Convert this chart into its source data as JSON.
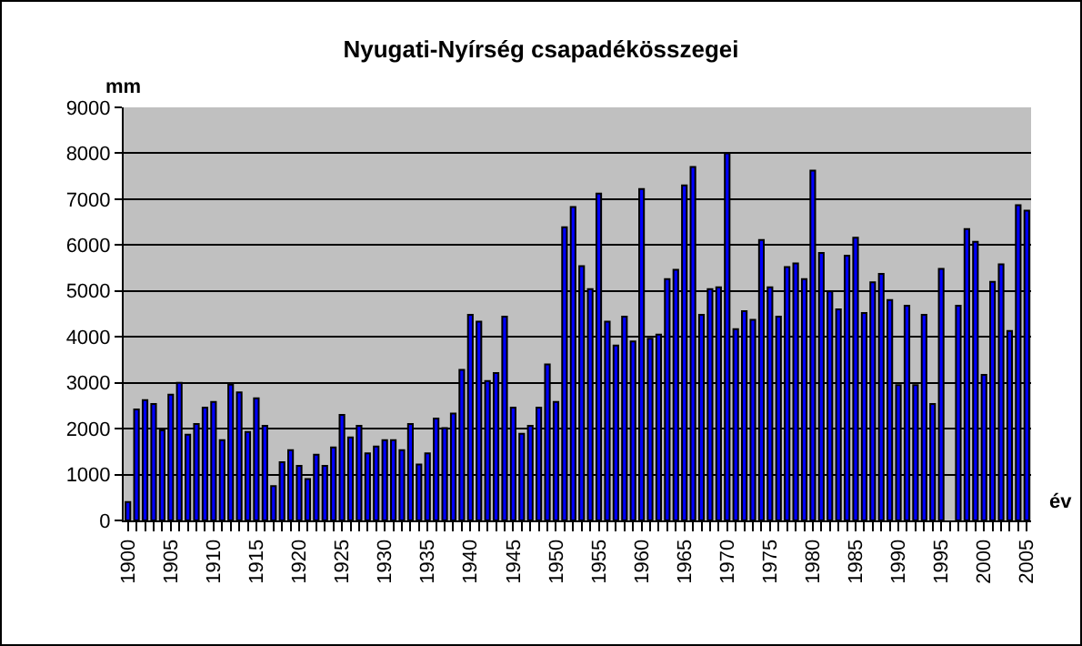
{
  "chart_data": {
    "type": "bar",
    "title": "Nyugati-Nyírség csapadékösszegei",
    "xlabel": "év",
    "ylabel": "mm",
    "categories": [
      "1900",
      null,
      null,
      null,
      null,
      "1905",
      null,
      null,
      null,
      null,
      "1910",
      null,
      null,
      null,
      null,
      "1915",
      null,
      null,
      null,
      null,
      "1920",
      null,
      null,
      null,
      null,
      "1925",
      null,
      null,
      null,
      null,
      "1930",
      null,
      null,
      null,
      null,
      "1935",
      null,
      null,
      null,
      null,
      "1940",
      null,
      null,
      null,
      null,
      "1945",
      null,
      null,
      null,
      null,
      "1950",
      null,
      null,
      null,
      null,
      "1955",
      null,
      null,
      null,
      null,
      "1960",
      null,
      null,
      null,
      null,
      "1965",
      null,
      null,
      null,
      null,
      "1970",
      null,
      null,
      null,
      null,
      "1975",
      null,
      null,
      null,
      null,
      "1980",
      null,
      null,
      null,
      null,
      "1985",
      null,
      null,
      null,
      null,
      "1990",
      null,
      null,
      null,
      null,
      "1995",
      null,
      null,
      null,
      null,
      "2000",
      null,
      null,
      null,
      null,
      "2005"
    ],
    "series": [
      {
        "color": "#0000ff",
        "values": [
          400,
          2420,
          2620,
          2540,
          1960,
          2740,
          3000,
          1870,
          2100,
          2460,
          2580,
          1750,
          2960,
          2790,
          1930,
          2660,
          2060,
          750,
          1270,
          1530,
          1190,
          900,
          1430,
          1190,
          1590,
          2300,
          1810,
          2060,
          1460,
          1610,
          1750,
          1750,
          1530,
          2100,
          1220,
          1460,
          2220,
          2010,
          2330,
          3280,
          4480,
          4330,
          3040,
          3210,
          4440,
          2460,
          1890,
          2060,
          2460,
          3400,
          2580,
          6390,
          6830,
          5540,
          5040,
          7120,
          4330,
          3810,
          4440,
          3900,
          7220,
          3960,
          4050,
          5260,
          5460,
          7300,
          7700,
          4480,
          5040,
          5080,
          8000,
          4170,
          4560,
          4370,
          6110,
          5080,
          4440,
          5520,
          5600,
          5260,
          7620,
          5830,
          4990,
          4600,
          5770,
          6160,
          4520,
          5190,
          5370,
          4800,
          2950,
          4680,
          2950,
          4480,
          2540,
          5480,
          null,
          4680,
          6350,
          6070,
          3170,
          5200,
          5580,
          4130,
          6870,
          6750
        ]
      }
    ],
    "ylim": [
      0,
      9000
    ],
    "yticks": [
      0,
      1000,
      2000,
      3000,
      4000,
      5000,
      6000,
      7000,
      8000,
      9000
    ],
    "grid": "y"
  }
}
